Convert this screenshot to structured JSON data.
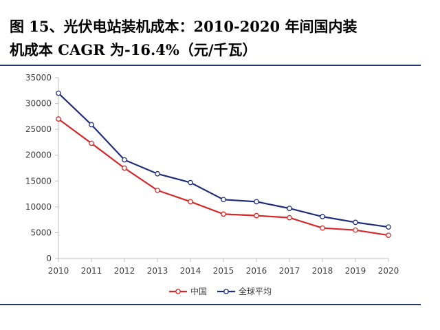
{
  "figure": {
    "title_line1": "图 15、光伏电站装机成本：2010-2020 年间国内装",
    "title_line2": "机成本 CAGR 为-16.4%（元/千瓦）"
  },
  "chart_data": {
    "type": "line",
    "x": [
      "2010",
      "2011",
      "2012",
      "2013",
      "2014",
      "2015",
      "2016",
      "2017",
      "2018",
      "2019",
      "2020"
    ],
    "ylim": [
      0,
      35000
    ],
    "yticks": [
      0,
      5000,
      10000,
      15000,
      20000,
      25000,
      30000,
      35000
    ],
    "ytick_labels": [
      "0",
      "5000",
      "10000",
      "15000",
      "20000",
      "25000",
      "30000",
      "35000"
    ],
    "grid": false,
    "legend_position": "bottom",
    "series": [
      {
        "name": "中国",
        "color": "#d62728",
        "values": [
          27000,
          22300,
          17500,
          13200,
          11000,
          8600,
          8300,
          7900,
          5900,
          5500,
          4500
        ]
      },
      {
        "name": "全球平均",
        "color": "#1f2d7a",
        "values": [
          32000,
          25900,
          19100,
          16400,
          14700,
          11400,
          11000,
          9700,
          8100,
          7000,
          6100
        ]
      }
    ]
  }
}
